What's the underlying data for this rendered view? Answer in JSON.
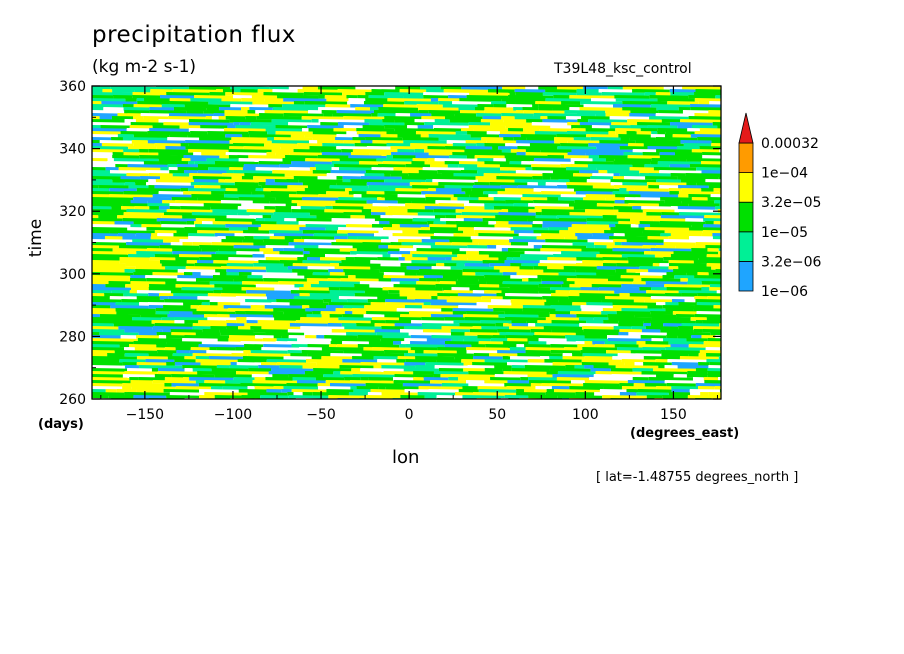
{
  "chart_data": {
    "type": "heatmap",
    "title": "precipitation flux",
    "units": "(kg m-2 s-1)",
    "run_label": "T39L48_ksc_control",
    "xlabel": "lon",
    "ylabel": "time",
    "x_unit": "(degrees_east)",
    "y_unit": "(days)",
    "xlim": [
      -180,
      177
    ],
    "ylim": [
      260,
      360
    ],
    "x_ticks": [
      -150,
      -100,
      -50,
      0,
      50,
      100,
      150
    ],
    "y_ticks": [
      260,
      280,
      300,
      320,
      340,
      360
    ],
    "slice_note": "[ lat=-1.48755 degrees_north ]",
    "colorbar": {
      "levels": [
        "1e-06",
        "3.2e-06",
        "1e-05",
        "3.2e-05",
        "1e-04",
        "0.00032"
      ],
      "colors": [
        "#ffffff",
        "#1fa5ff",
        "#00f096",
        "#00e000",
        "#ffff00",
        "#ff9b00",
        "#e41b1b"
      ]
    }
  }
}
